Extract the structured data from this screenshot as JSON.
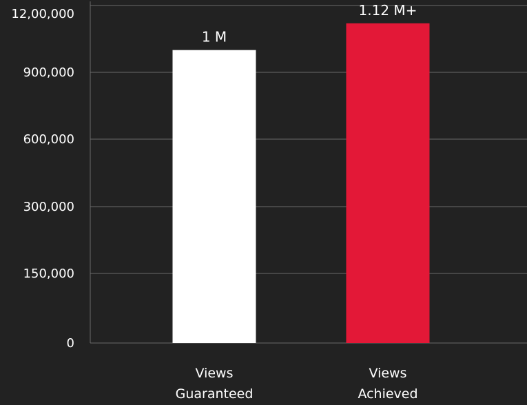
{
  "chart_data": {
    "type": "bar",
    "categories": [
      [
        "Views",
        "Guaranteed"
      ],
      [
        "Views",
        "Achieved"
      ]
    ],
    "values": [
      1000000,
      1120000
    ],
    "data_labels": [
      "1 M",
      "1.12 M+"
    ],
    "y_ticks": [
      {
        "label": "0",
        "value": 0
      },
      {
        "label": "150,000",
        "value": 150000
      },
      {
        "label": "300,000",
        "value": 300000
      },
      {
        "label": "600,000",
        "value": 600000
      },
      {
        "label": "900,000",
        "value": 900000
      },
      {
        "label": "12,00,000",
        "value": 1200000
      }
    ],
    "ylim": [
      0,
      1200000
    ],
    "grid": true,
    "legend": "none",
    "colors": {
      "background": "#222222",
      "grid": "#6a6a6a",
      "bars": [
        "#ffffff",
        "#e31837"
      ],
      "text": "#ffffff"
    }
  }
}
